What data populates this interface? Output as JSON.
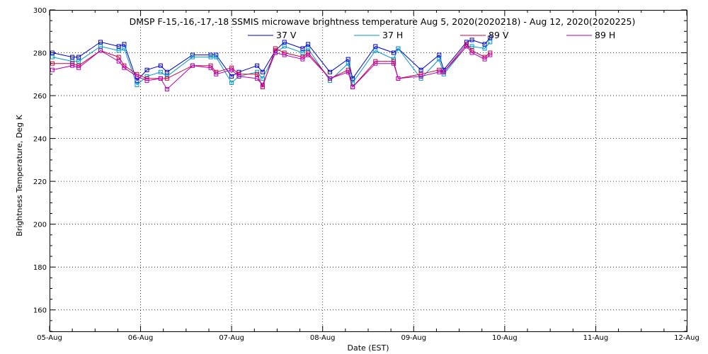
{
  "chart_data": {
    "type": "line",
    "title": "DMSP F-15,-16,-17,-18 SSMIS microwave brightness temperature Aug  5, 2020(2020218) - Aug 12, 2020(2020225)",
    "xlabel": "Date (EST)",
    "ylabel": "Brightness Temperature, Deg K",
    "x_tick_labels": [
      "05-Aug",
      "06-Aug",
      "07-Aug",
      "08-Aug",
      "09-Aug",
      "10-Aug",
      "11-Aug",
      "12-Aug"
    ],
    "xlim_days": [
      0,
      7
    ],
    "ylim": [
      150,
      300
    ],
    "y_ticks": [
      160,
      180,
      200,
      220,
      240,
      260,
      280,
      300
    ],
    "grid": true,
    "legend_position": "top",
    "x": [
      0.03,
      0.25,
      0.32,
      0.56,
      0.76,
      0.82,
      0.96,
      1.07,
      1.22,
      1.29,
      1.57,
      1.77,
      1.83,
      2.0,
      2.08,
      2.28,
      2.34,
      2.48,
      2.58,
      2.78,
      2.84,
      3.08,
      3.28,
      3.33,
      3.58,
      3.78,
      3.83,
      4.08,
      4.28,
      4.33,
      4.58,
      4.64,
      4.78,
      4.84
    ],
    "series": [
      {
        "name": "37 V",
        "color": "#0000c8",
        "values": [
          280,
          278,
          278,
          285,
          283,
          284,
          267,
          272,
          274,
          271,
          279,
          279,
          279,
          269,
          271,
          274,
          271,
          281,
          285,
          282,
          284,
          271,
          277,
          268,
          283,
          280,
          282,
          272,
          279,
          272,
          285,
          286,
          284,
          287
        ]
      },
      {
        "name": "37 H",
        "color": "#0096c8",
        "values": [
          278,
          276,
          276,
          283,
          281,
          282,
          265,
          269,
          271,
          269,
          278,
          278,
          278,
          266,
          269,
          271,
          268,
          280,
          283,
          280,
          282,
          267,
          275,
          266,
          281,
          277,
          282,
          268,
          277,
          270,
          283,
          283,
          282,
          285
        ]
      },
      {
        "name": "89 V",
        "color": "#d2003c",
        "values": [
          275,
          275,
          274,
          281,
          278,
          274,
          270,
          268,
          268,
          268,
          274,
          274,
          271,
          273,
          270,
          270,
          264,
          282,
          280,
          278,
          280,
          268,
          272,
          264,
          276,
          276,
          268,
          270,
          272,
          271,
          284,
          281,
          278,
          280
        ]
      },
      {
        "name": "89 H",
        "color": "#b400b4",
        "values": [
          272,
          274,
          273,
          281,
          276,
          273,
          269,
          267,
          268,
          263,
          274,
          273,
          270,
          272,
          269,
          268,
          265,
          280,
          279,
          277,
          279,
          268,
          271,
          264,
          275,
          275,
          268,
          269,
          271,
          271,
          283,
          280,
          277,
          279
        ]
      }
    ]
  }
}
